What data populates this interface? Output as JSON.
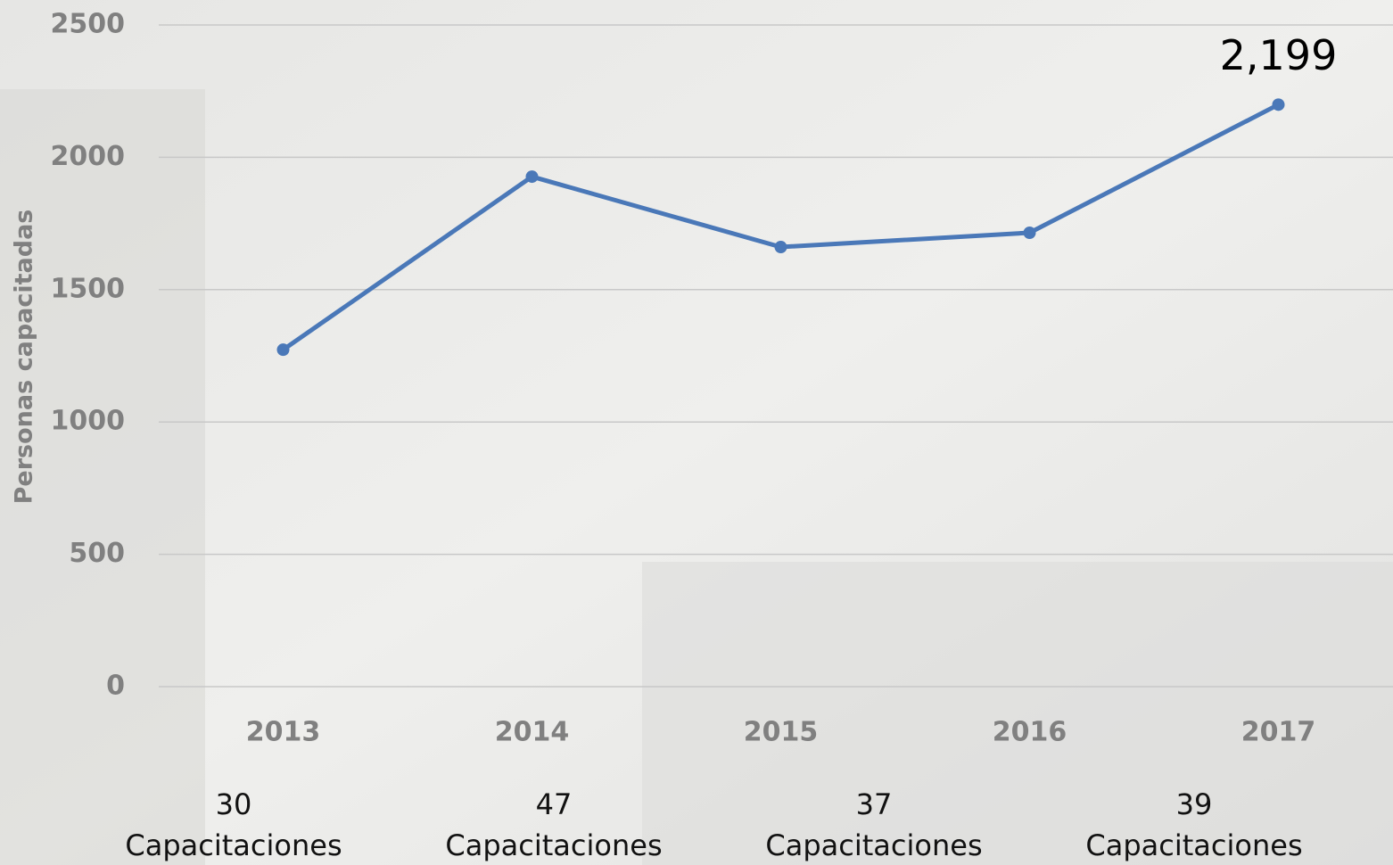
{
  "chart_data": {
    "type": "line",
    "y_label": "Personas capacitadas",
    "categories": [
      "2013",
      "2014",
      "2015",
      "2016",
      "2017"
    ],
    "series": [
      {
        "name": "Personas capacitadas",
        "color": "#4a78b8",
        "values": [
          1273,
          1927,
          1661,
          1715,
          2199
        ],
        "value_labels": [
          null,
          null,
          null,
          null,
          "2,199"
        ]
      }
    ],
    "ylim": [
      0,
      2500
    ],
    "yticks": [
      0,
      500,
      1000,
      1500,
      2000,
      2500
    ],
    "grid": true,
    "annotations": [
      {
        "count": "30",
        "label": "Capacitaciones"
      },
      {
        "count": "47",
        "label": "Capacitaciones"
      },
      {
        "count": "37",
        "label": "Capacitaciones"
      },
      {
        "count": "39",
        "label": "Capacitaciones"
      }
    ]
  }
}
